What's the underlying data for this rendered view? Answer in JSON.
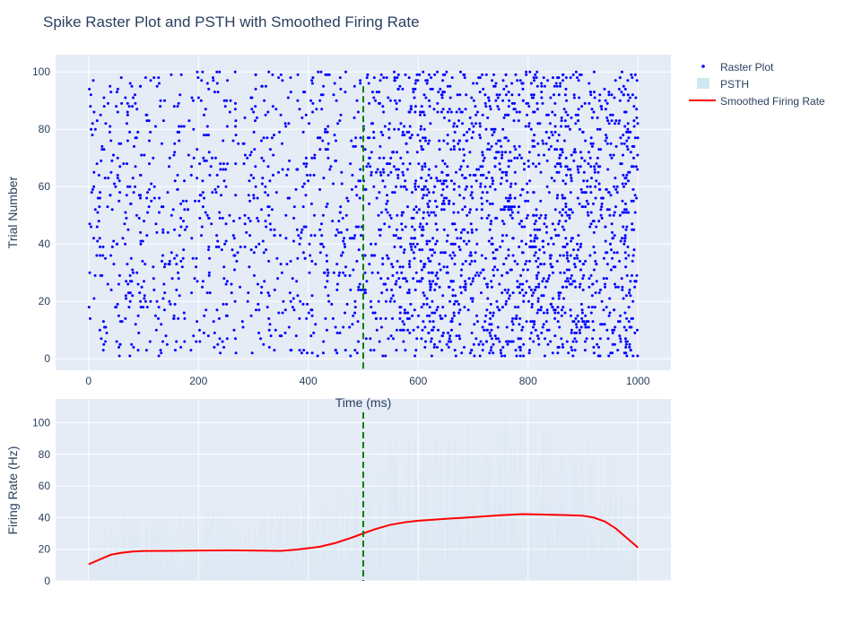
{
  "chart_data": {
    "type": "scatter",
    "title": "Spike Raster Plot and PSTH with Smoothed Firing Rate",
    "legend": {
      "placement": "top-right",
      "entries": [
        "Raster Plot",
        "PSTH",
        "Smoothed Firing Rate"
      ]
    },
    "stimulus_onset_ms": 500,
    "colors": {
      "background": "#e5ecf6",
      "raster": "#0000ff",
      "psth": "#add8e6",
      "smoothed": "#ff0000",
      "onset_line": "#008000",
      "grid": "#ffffff",
      "text": "#2a3f5f"
    },
    "raster": {
      "xlabel": "Time (ms)",
      "ylabel": "Trial Number",
      "xlim": [
        -60,
        1060
      ],
      "ylim": [
        -4,
        106
      ],
      "xticks": [
        0,
        200,
        400,
        600,
        800,
        1000
      ],
      "yticks": [
        0,
        20,
        40,
        60,
        80,
        100
      ],
      "trials": 100,
      "time_range_ms": [
        0,
        1000
      ],
      "approx_rate_before_onset_hz": 19,
      "approx_rate_after_onset_hz": 40
    },
    "psth": {
      "ylabel": "Firing Rate (Hz)",
      "xlim": [
        -60,
        1060
      ],
      "ylim": [
        0,
        115
      ],
      "yticks": [
        0,
        20,
        40,
        60,
        80,
        100
      ]
    },
    "smoothed_firing_rate": {
      "name": "Smoothed Firing Rate",
      "x": [
        0,
        20,
        40,
        60,
        80,
        100,
        150,
        200,
        260,
        300,
        350,
        380,
        420,
        450,
        480,
        500,
        520,
        550,
        580,
        600,
        650,
        700,
        750,
        790,
        830,
        870,
        900,
        920,
        940,
        960,
        980,
        1000
      ],
      "y": [
        10.5,
        13.5,
        16.5,
        17.8,
        18.6,
        18.9,
        19.0,
        19.2,
        19.3,
        19.2,
        19.0,
        19.8,
        21.5,
        24.0,
        27.5,
        30.0,
        32.5,
        35.5,
        37.3,
        38.0,
        39.2,
        40.3,
        41.5,
        42.2,
        41.9,
        41.6,
        41.2,
        40.0,
        37.5,
        33.0,
        27.0,
        21.0
      ]
    }
  }
}
